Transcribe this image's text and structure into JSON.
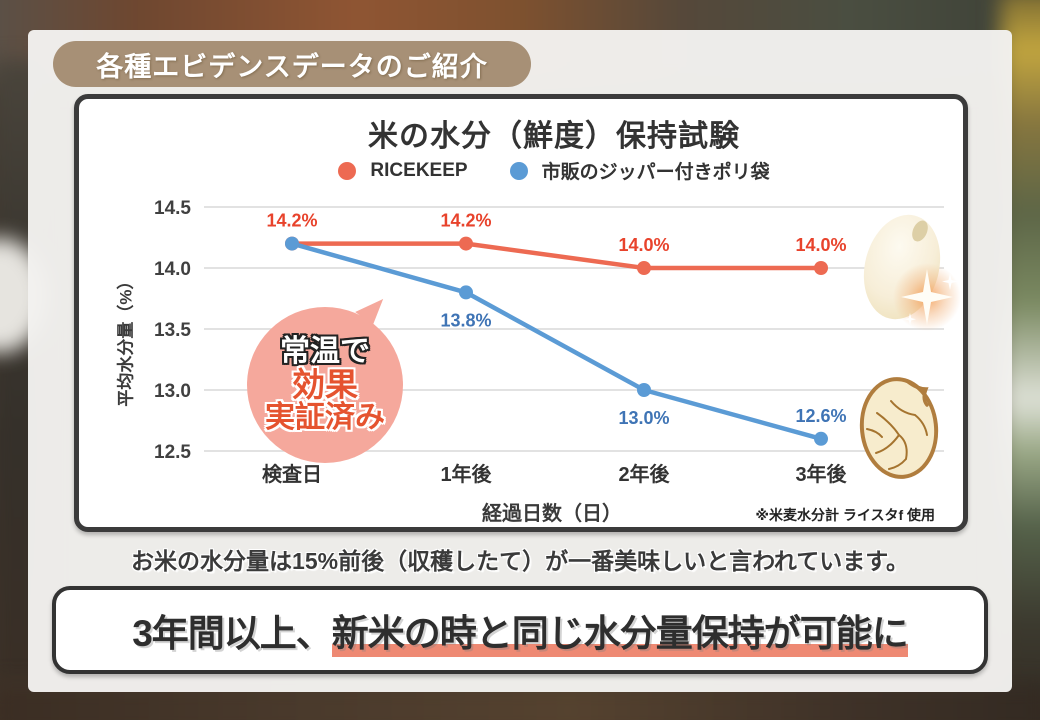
{
  "header": {
    "badge": "各種エビデンスデータのご紹介"
  },
  "colors": {
    "badge_bg": "#a79076",
    "ricekeep_red": "#ed6a52",
    "bag_blue": "#5b9bd5",
    "bubble_pink": "#f5a89c",
    "bubble_text": "#e5532f",
    "underline_salmon": "#ee8973"
  },
  "chart_data": {
    "type": "line",
    "title": "米の水分（鮮度）保持試験",
    "categories": [
      "検査日",
      "1年後",
      "2年後",
      "3年後"
    ],
    "series": [
      {
        "name": "RICEKEEP",
        "color": "#ed6a52",
        "label_color": "#e8432c",
        "values": [
          14.2,
          14.2,
          14.0,
          14.0
        ],
        "labels": [
          "14.2%",
          "14.2%",
          "14.0%",
          "14.0%"
        ],
        "label_pos": [
          "above",
          "above",
          "above",
          "above"
        ]
      },
      {
        "name": "市販のジッパー付きポリ袋",
        "color": "#5b9bd5",
        "label_color": "#3f74b5",
        "values": [
          14.2,
          13.8,
          13.0,
          12.6
        ],
        "labels": [
          "",
          "13.8%",
          "13.0%",
          "12.6%"
        ],
        "label_pos": [
          "none",
          "below",
          "below",
          "above"
        ]
      }
    ],
    "ylabel": "平均水分量（%）",
    "xlabel": "経過日数（日）",
    "ylim": [
      12.5,
      14.5
    ],
    "yticks": [
      14.5,
      14.0,
      13.5,
      13.0,
      12.5
    ],
    "grid": "horizontal",
    "legend_position": "top",
    "note": "※米麦水分計 ライスタf 使用"
  },
  "bubble": {
    "line1": "常温で",
    "line2": "効果",
    "line3": "実証済み"
  },
  "caption": {
    "text": "お米の水分量は15%前後（収穫したて）が一番美味しいと言われています。"
  },
  "banner": {
    "prefix": "3年間以上、",
    "highlight": "新米の時と同じ水分量保持が可能に"
  }
}
